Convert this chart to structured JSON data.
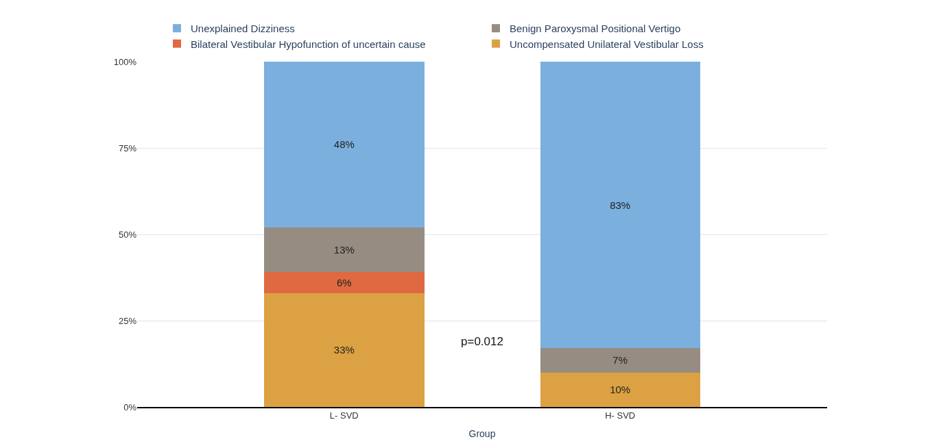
{
  "chart_data": {
    "type": "bar",
    "stacked": true,
    "xlabel": "Group",
    "categories": [
      "L- SVD",
      "H- SVD"
    ],
    "series": [
      {
        "name": "Uncompensated Unilateral Vestibular Loss",
        "color": "#dca142",
        "values": [
          33,
          10
        ],
        "value_labels": [
          "33%",
          "10%"
        ]
      },
      {
        "name": "Bilateral Vestibular Hypofunction of uncertain cause",
        "color": "#df6941",
        "values": [
          6,
          0
        ],
        "value_labels": [
          "6%",
          null
        ]
      },
      {
        "name": "Benign Paroxysmal Positional Vertigo",
        "color": "#978c81",
        "values": [
          13,
          7
        ],
        "value_labels": [
          "13%",
          "7%"
        ]
      },
      {
        "name": "Unexplained Dizziness",
        "color": "#7bb0de",
        "values": [
          48,
          83
        ],
        "value_labels": [
          "48%",
          "83%"
        ]
      }
    ],
    "ylim": [
      0,
      100
    ],
    "yticks": [
      {
        "value": 0,
        "label": "0%"
      },
      {
        "value": 25,
        "label": "25%"
      },
      {
        "value": 50,
        "label": "50%"
      },
      {
        "value": 75,
        "label": "75%"
      },
      {
        "value": 100,
        "label": "100%"
      }
    ],
    "grid": "y",
    "legend": "top",
    "annotations": [
      "p=0.012"
    ]
  }
}
